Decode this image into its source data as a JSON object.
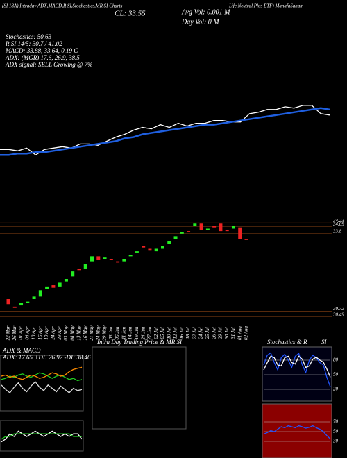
{
  "header": {
    "source": "(SI 18A) Intraday ADX,MACD,R SI,Stochastics,MR SI Charts",
    "name": "Life Neutral Plus ETF) ManafaSaham",
    "close": "CL: 33.55",
    "avg_vol": "Avg Vol: 0.001 M",
    "day_vol": "Day Vol: 0 M",
    "stochastics": "Stochastics: 50.63",
    "rsi": "R SI 14/5: 30.7 / 41.02",
    "macd": "MACD: 33.88, 33.64, 0.19 C",
    "adx": "ADX: (MGR) 17.6, 26.9, 38.5",
    "adx_signal": "ADX signal: SELL Growing @ 7%",
    "intraday_title": "Intra Day Trading Price & MR SI"
  },
  "chart_data": [
    {
      "type": "line",
      "ylim": [
        29.5,
        34.8
      ],
      "series": [
        {
          "name": "Price",
          "color": "#ffffff",
          "values": [
            31.0,
            31.0,
            30.9,
            31.1,
            30.6,
            31.0,
            31.1,
            31.2,
            31.1,
            31.4,
            31.4,
            31.3,
            31.6,
            31.9,
            32.1,
            32.4,
            32.6,
            32.5,
            32.8,
            32.6,
            32.9,
            32.7,
            32.9,
            32.9,
            33.1,
            33.1,
            33.0,
            33.0,
            33.6,
            33.7,
            33.9,
            33.9,
            34.1,
            34.0,
            34.2,
            34.2,
            33.6,
            33.5
          ]
        },
        {
          "name": "MA",
          "color": "#1f5fe0",
          "values": [
            30.6,
            30.6,
            30.7,
            30.7,
            30.8,
            30.8,
            30.9,
            31.0,
            31.1,
            31.2,
            31.3,
            31.4,
            31.5,
            31.6,
            31.8,
            31.9,
            32.1,
            32.2,
            32.3,
            32.4,
            32.5,
            32.6,
            32.7,
            32.8,
            32.8,
            32.9,
            33.0,
            33.1,
            33.2,
            33.3,
            33.4,
            33.5,
            33.6,
            33.7,
            33.8,
            33.9,
            34.0,
            33.9
          ]
        }
      ]
    },
    {
      "type": "candlestick",
      "ylim": [
        30.4,
        34.4
      ],
      "yticks": [
        34.23,
        34.09,
        33.8,
        30.72,
        30.49
      ],
      "categories": [
        "22 Mar",
        "26 Mar",
        "01 Apr",
        "04 Apr",
        "10 Apr",
        "16 Apr",
        "19 Apr",
        "24 Apr",
        "29 Apr",
        "03 May",
        "08 May",
        "13 May",
        "16 May",
        "21 May",
        "24 May",
        "29 May",
        "03 Jun",
        "06 Jun",
        "11 Jun",
        "14 Jun",
        "19 Jun",
        "24 Jun",
        "27 Jun",
        "02 Jul",
        "05 Jul",
        "10 Jul",
        "12 Jul",
        "16 Jul",
        "18 Jul",
        "22 Jul",
        "24 Jul",
        "25 Jul",
        "26 Jul",
        "29 Jul",
        "30 Jul",
        "31 Jul",
        "01 Aug",
        "02 Aug"
      ],
      "open": [
        31.2,
        30.9,
        30.95,
        31.05,
        31.2,
        31.3,
        31.6,
        31.75,
        31.7,
        31.9,
        32.1,
        32.4,
        32.4,
        32.7,
        32.9,
        32.8,
        32.8,
        32.7,
        32.7,
        32.9,
        33.05,
        33.3,
        33.2,
        33.1,
        33.2,
        33.4,
        33.6,
        33.8,
        33.9,
        34.1,
        34.2,
        33.95,
        34.1,
        34.2,
        33.95,
        34.0,
        34.05,
        33.6
      ],
      "close": [
        31.0,
        30.85,
        31.05,
        31.1,
        31.3,
        31.55,
        31.7,
        31.65,
        31.85,
        32.0,
        32.3,
        32.35,
        32.6,
        32.9,
        32.75,
        32.85,
        32.75,
        32.65,
        32.8,
        32.95,
        33.1,
        33.25,
        33.15,
        33.2,
        33.3,
        33.5,
        33.7,
        33.85,
        33.85,
        34.2,
        33.95,
        34.0,
        34.05,
        33.9,
        33.9,
        34.1,
        33.6,
        33.55
      ]
    },
    {
      "type": "line",
      "title": "ADX & MACD",
      "subtitle": "ADX: 17.65 +DI: 26.92 -DI: 38.46",
      "ylim": [
        0,
        45
      ],
      "series": [
        {
          "name": "+DI",
          "color": "#22cc22",
          "values": [
            27,
            28,
            30,
            29,
            31,
            32,
            30,
            29,
            31,
            33,
            32,
            30,
            28,
            30,
            31,
            29,
            27,
            28,
            26,
            27
          ]
        },
        {
          "name": "-DI",
          "color": "#ff8c00",
          "values": [
            30,
            31,
            29,
            30,
            28,
            27,
            29,
            31,
            30,
            28,
            29,
            31,
            33,
            32,
            30,
            31,
            34,
            36,
            37,
            38
          ]
        },
        {
          "name": "ADX",
          "color": "#dddddd",
          "values": [
            22,
            18,
            15,
            20,
            24,
            19,
            16,
            21,
            25,
            20,
            17,
            22,
            19,
            16,
            21,
            18,
            15,
            19,
            17,
            18
          ]
        }
      ]
    },
    {
      "type": "line",
      "ylim": [
        0,
        10
      ],
      "series": [
        {
          "name": "MACD",
          "color": "#ffffff",
          "values": [
            3,
            4,
            6,
            5,
            7,
            6,
            5,
            6,
            7,
            6,
            5,
            6,
            7,
            6,
            5,
            6,
            5,
            6,
            6,
            4
          ]
        },
        {
          "name": "Signal",
          "color": "#22cc22",
          "values": [
            4,
            5,
            5,
            6,
            6,
            6,
            6,
            6,
            6,
            6,
            6,
            6,
            6,
            6,
            6,
            6,
            6,
            5,
            5,
            5
          ]
        }
      ]
    },
    {
      "type": "line",
      "title": "Stochastics & R",
      "title2": "SI",
      "ylim": [
        0,
        100
      ],
      "yticks": [
        20,
        50,
        80
      ],
      "series": [
        {
          "name": "%K",
          "color": "#2255ff",
          "values": [
            70,
            90,
            95,
            75,
            60,
            85,
            92,
            80,
            65,
            88,
            94,
            70,
            55,
            80,
            90,
            85,
            75,
            70,
            45,
            25
          ]
        },
        {
          "name": "%D",
          "color": "#ffffff",
          "values": [
            60,
            75,
            88,
            85,
            70,
            68,
            85,
            88,
            75,
            72,
            88,
            82,
            65,
            68,
            82,
            86,
            80,
            76,
            62,
            45
          ]
        }
      ]
    },
    {
      "type": "line",
      "ylim": [
        0,
        100
      ],
      "yticks": [
        30,
        50,
        70
      ],
      "series": [
        {
          "name": "RSI",
          "color": "#2255ff",
          "values": [
            45,
            48,
            52,
            50,
            55,
            60,
            58,
            62,
            60,
            58,
            62,
            60,
            57,
            59,
            62,
            58,
            55,
            50,
            42,
            35
          ]
        }
      ]
    }
  ]
}
